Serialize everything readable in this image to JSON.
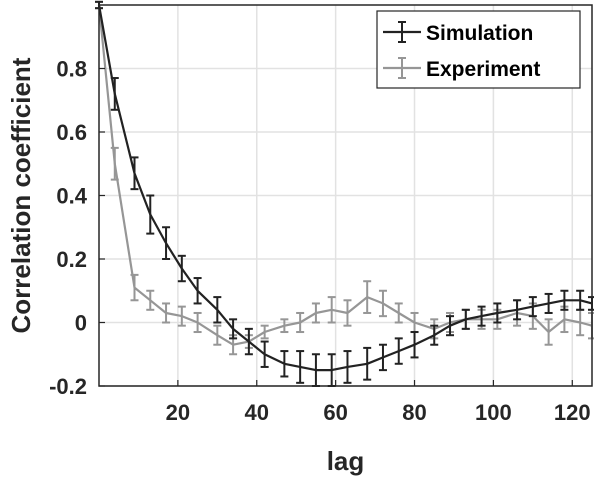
{
  "chart_data": {
    "type": "line",
    "xlabel": "lag",
    "ylabel": "Correlation coefficient",
    "xlim": [
      0,
      125
    ],
    "ylim": [
      -0.2,
      1.0
    ],
    "x_ticks": [
      20,
      40,
      60,
      80,
      100,
      120
    ],
    "y_ticks": [
      -0.2,
      0,
      0.2,
      0.4,
      0.6,
      0.8
    ],
    "y_tick_labels": [
      "-0.2",
      "0",
      "0.2",
      "0.4",
      "0.6",
      "0.8"
    ],
    "grid": true,
    "legend_position": "top-right",
    "series": [
      {
        "name": "Simulation",
        "color": "#222222",
        "x": [
          0,
          4,
          9,
          13,
          17,
          21,
          25,
          30,
          34,
          38,
          42,
          47,
          51,
          55,
          59,
          63,
          68,
          72,
          76,
          80,
          85,
          89,
          93,
          97,
          101,
          106,
          110,
          114,
          118,
          122,
          125
        ],
        "y": [
          1.0,
          0.72,
          0.47,
          0.34,
          0.25,
          0.17,
          0.1,
          0.04,
          -0.02,
          -0.06,
          -0.1,
          -0.13,
          -0.14,
          -0.15,
          -0.15,
          -0.14,
          -0.13,
          -0.11,
          -0.09,
          -0.07,
          -0.04,
          -0.01,
          0.01,
          0.02,
          0.03,
          0.04,
          0.05,
          0.06,
          0.07,
          0.07,
          0.06
        ],
        "err": [
          0.01,
          0.05,
          0.05,
          0.06,
          0.05,
          0.04,
          0.04,
          0.04,
          0.03,
          0.04,
          0.04,
          0.04,
          0.05,
          0.05,
          0.05,
          0.05,
          0.05,
          0.04,
          0.04,
          0.04,
          0.03,
          0.03,
          0.03,
          0.03,
          0.03,
          0.03,
          0.03,
          0.03,
          0.03,
          0.03,
          0.02
        ]
      },
      {
        "name": "Experiment",
        "color": "#969696",
        "x": [
          0,
          4,
          9,
          13,
          17,
          21,
          25,
          30,
          34,
          38,
          42,
          47,
          51,
          55,
          59,
          63,
          68,
          72,
          76,
          80,
          85,
          89,
          93,
          97,
          101,
          106,
          110,
          114,
          118,
          122,
          125
        ],
        "y": [
          1.0,
          0.5,
          0.11,
          0.07,
          0.03,
          0.02,
          0.0,
          -0.04,
          -0.07,
          -0.06,
          -0.03,
          -0.01,
          0.0,
          0.03,
          0.04,
          0.03,
          0.08,
          0.06,
          0.03,
          0.0,
          -0.02,
          0.0,
          0.01,
          0.01,
          0.01,
          0.03,
          0.02,
          -0.03,
          0.01,
          0.0,
          -0.01
        ],
        "err": [
          0.01,
          0.05,
          0.04,
          0.03,
          0.03,
          0.03,
          0.03,
          0.03,
          0.03,
          0.02,
          0.02,
          0.02,
          0.03,
          0.03,
          0.04,
          0.04,
          0.05,
          0.04,
          0.03,
          0.03,
          0.03,
          0.03,
          0.03,
          0.03,
          0.03,
          0.04,
          0.04,
          0.04,
          0.04,
          0.04,
          0.04
        ]
      }
    ]
  }
}
